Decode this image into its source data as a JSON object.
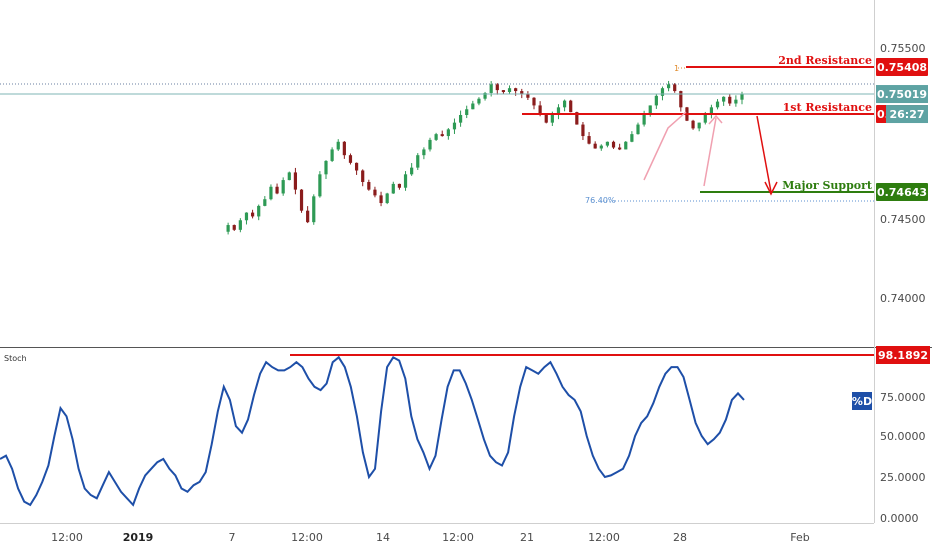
{
  "chart_data": [
    {
      "type": "candlestick",
      "title": "",
      "y_axis_ticks": [
        "0.75500",
        "0.74500",
        "0.74000"
      ],
      "ylim": [
        0.7375,
        0.7572
      ],
      "x_axis_ticks": [
        "12:00",
        "2019",
        "7",
        "12:00",
        "14",
        "12:00",
        "21",
        "12:00",
        "28",
        "Feb"
      ],
      "price_series": [
        0.7358,
        0.7365,
        0.736,
        0.737,
        0.7378,
        0.7374,
        0.7385,
        0.7392,
        0.7405,
        0.7398,
        0.7412,
        0.742,
        0.7402,
        0.738,
        0.7368,
        0.7395,
        0.7418,
        0.7432,
        0.7444,
        0.7452,
        0.7438,
        0.743,
        0.7422,
        0.741,
        0.7402,
        0.7396,
        0.7388,
        0.7398,
        0.7408,
        0.7404,
        0.7418,
        0.7425,
        0.7438,
        0.7444,
        0.7454,
        0.746,
        0.7458,
        0.7465,
        0.7472,
        0.748,
        0.7486,
        0.7492,
        0.7497,
        0.7503,
        0.7512,
        0.7506,
        0.7504,
        0.7508,
        0.7505,
        0.7502,
        0.7498,
        0.749,
        0.748,
        0.7472,
        0.748,
        0.7488,
        0.7495,
        0.7483,
        0.747,
        0.7458,
        0.745,
        0.7445,
        0.7448,
        0.7452,
        0.7446,
        0.7444,
        0.7452,
        0.746,
        0.747,
        0.7482,
        0.749,
        0.75,
        0.7508,
        0.7512,
        0.7505,
        0.7488,
        0.7474,
        0.7466,
        0.7472,
        0.7481,
        0.7488,
        0.7494,
        0.7499,
        0.7492,
        0.7496,
        0.7502
      ],
      "levels": [
        {
          "label": "2nd Resistance",
          "value": "0.75408",
          "color": "#e01010"
        },
        {
          "label": "1st Resistance",
          "value": "0.75119",
          "color": "#e01010"
        },
        {
          "label": "Major Support",
          "value": "0.74643",
          "color": "#2e7d0f"
        }
      ],
      "current_price": "0.75019",
      "countdown": "26:27",
      "fib_labels": [
        "76.40%",
        "1"
      ]
    },
    {
      "type": "line",
      "title": "Stoch",
      "series_name": "%D",
      "y_axis_ticks": [
        "75.0000",
        "50.0000",
        "25.0000",
        "0.0000"
      ],
      "ylim": [
        0,
        100
      ],
      "resistance_value": "98.1892",
      "values": [
        36,
        38,
        30,
        18,
        10,
        8,
        14,
        22,
        32,
        50,
        67,
        62,
        48,
        30,
        18,
        14,
        12,
        20,
        28,
        22,
        16,
        12,
        8,
        18,
        26,
        30,
        34,
        36,
        30,
        26,
        18,
        16,
        20,
        22,
        28,
        45,
        65,
        80,
        72,
        56,
        52,
        60,
        75,
        88,
        95,
        92,
        90,
        90,
        92,
        95,
        92,
        85,
        80,
        78,
        82,
        95,
        98,
        92,
        80,
        62,
        40,
        25,
        30,
        65,
        92,
        98,
        96,
        85,
        62,
        48,
        40,
        30,
        38,
        60,
        80,
        90,
        90,
        82,
        72,
        60,
        48,
        38,
        34,
        32,
        40,
        62,
        80,
        92,
        90,
        88,
        92,
        95,
        88,
        80,
        75,
        72,
        65,
        50,
        38,
        30,
        25,
        26,
        28,
        30,
        38,
        50,
        58,
        62,
        70,
        80,
        88,
        92,
        92,
        86,
        72,
        58,
        50,
        45,
        48,
        52,
        60,
        72,
        76,
        72
      ]
    }
  ]
}
